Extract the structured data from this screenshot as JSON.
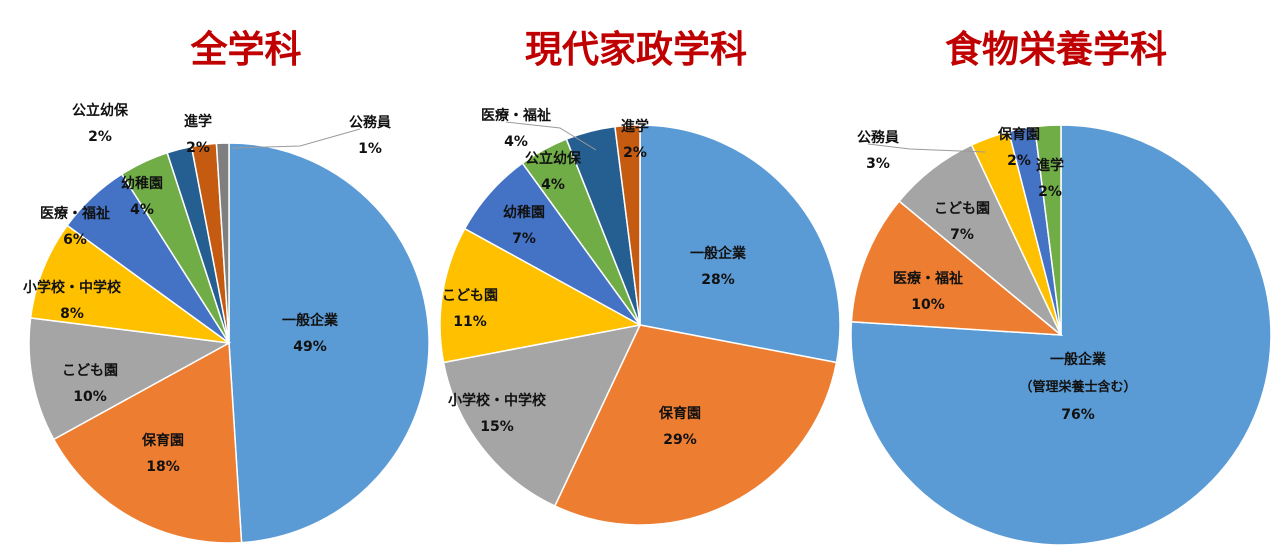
{
  "colors": {
    "title": "#c00000",
    "general": "#5b9bd5",
    "hoiku": "#ed7d31",
    "kodomo": "#a5a5a5",
    "school": "#ffc000",
    "medical": "#4472c4",
    "youchien": "#70ad47",
    "koritsu": "#255e91",
    "shingaku": "#c55a11",
    "koumuin": "#7f7f7f"
  },
  "chart_data": [
    {
      "type": "pie",
      "title": "全学科",
      "series": [
        {
          "name": "一般企業",
          "value": 49,
          "label": "49%",
          "color": "general"
        },
        {
          "name": "保育園",
          "value": 18,
          "label": "18%",
          "color": "hoiku"
        },
        {
          "name": "こども園",
          "value": 10,
          "label": "10%",
          "color": "kodomo"
        },
        {
          "name": "小学校・中学校",
          "value": 8,
          "label": "8%",
          "color": "school"
        },
        {
          "name": "医療・福祉",
          "value": 6,
          "label": "6%",
          "color": "medical"
        },
        {
          "name": "幼稚園",
          "value": 4,
          "label": "4%",
          "color": "youchien"
        },
        {
          "name": "公立幼保",
          "value": 2,
          "label": "2%",
          "color": "koritsu"
        },
        {
          "name": "進学",
          "value": 2,
          "label": "2%",
          "color": "shingaku"
        },
        {
          "name": "公務員",
          "value": 1,
          "label": "1%",
          "color": "koumuin"
        }
      ]
    },
    {
      "type": "pie",
      "title": "現代家政学科",
      "series": [
        {
          "name": "一般企業",
          "value": 28,
          "label": "28%",
          "color": "general"
        },
        {
          "name": "保育園",
          "value": 29,
          "label": "29%",
          "color": "hoiku"
        },
        {
          "name": "小学校・中学校",
          "value": 15,
          "label": "15%",
          "color": "kodomo"
        },
        {
          "name": "こども園",
          "value": 11,
          "label": "11%",
          "color": "school"
        },
        {
          "name": "幼稚園",
          "value": 7,
          "label": "7%",
          "color": "medical"
        },
        {
          "name": "公立幼保",
          "value": 4,
          "label": "4%",
          "color": "youchien"
        },
        {
          "name": "医療・福祉",
          "value": 4,
          "label": "4%",
          "color": "koritsu"
        },
        {
          "name": "進学",
          "value": 2,
          "label": "2%",
          "color": "shingaku"
        }
      ]
    },
    {
      "type": "pie",
      "title": "食物栄養学科",
      "series": [
        {
          "name": "一般企業",
          "note": "（管理栄養士含む）",
          "value": 76,
          "label": "76%",
          "color": "general"
        },
        {
          "name": "医療・福祉",
          "value": 10,
          "label": "10%",
          "color": "hoiku"
        },
        {
          "name": "こども園",
          "value": 7,
          "label": "7%",
          "color": "kodomo"
        },
        {
          "name": "公務員",
          "value": 3,
          "label": "3%",
          "color": "school"
        },
        {
          "name": "保育園",
          "value": 2,
          "label": "2%",
          "color": "medical"
        },
        {
          "name": "進学",
          "value": 2,
          "label": "2%",
          "color": "youchien"
        }
      ]
    }
  ]
}
